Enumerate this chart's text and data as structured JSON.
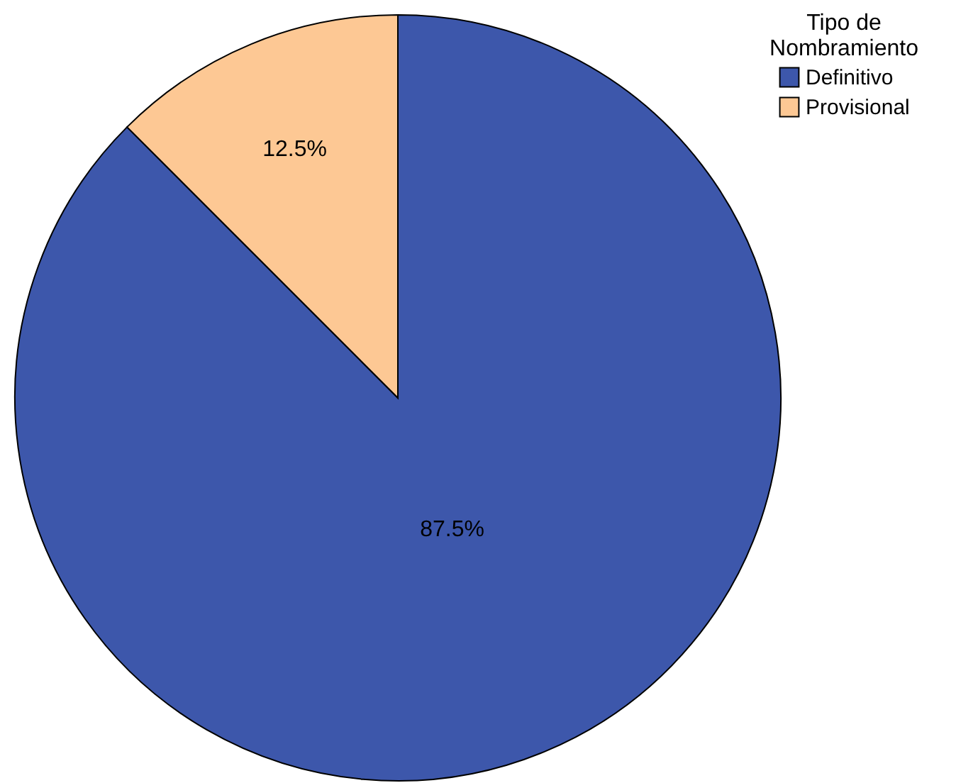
{
  "chart_data": {
    "type": "pie",
    "categories": [
      "Definitivo",
      "Provisional"
    ],
    "values": [
      87.5,
      12.5
    ],
    "colors": [
      "#3d57ab",
      "#fdc894"
    ],
    "legend_title": "Tipo de Nombramiento",
    "legend": "top right",
    "value_labels": [
      "87.5%",
      "12.5%"
    ]
  }
}
